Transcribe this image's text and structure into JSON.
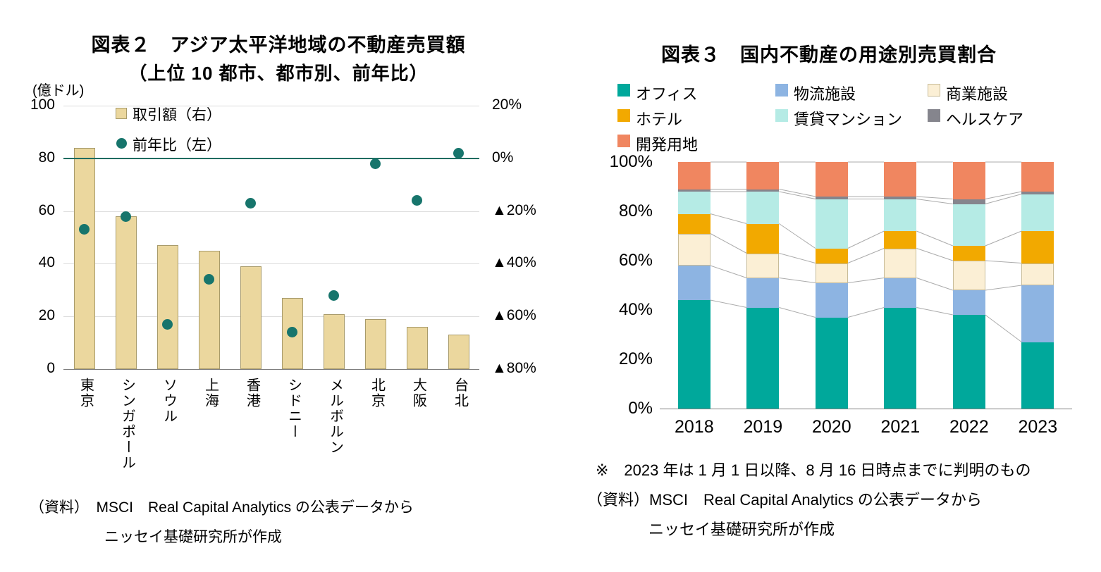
{
  "chart_data": [
    {
      "type": "bar+scatter",
      "title": "図表２　アジア太平洋地域の不動産売買額",
      "subtitle": "（上位 10 都市、都市別、前年比）",
      "categories": [
        "東京",
        "シンガポール",
        "ソウル",
        "上海",
        "香港",
        "シドニー",
        "メルボルン",
        "北京",
        "大阪",
        "台北"
      ],
      "series": [
        {
          "name": "取引額（右）",
          "type": "bar",
          "unit": "億ドル",
          "color": "#EBD79E",
          "border": "#A89B6B",
          "values": [
            84,
            58,
            47,
            45,
            39,
            27,
            21,
            19,
            16,
            13
          ]
        },
        {
          "name": "前年比（左）",
          "type": "scatter",
          "unit": "%",
          "color": "#17756C",
          "values": [
            -27,
            -22,
            -63,
            -46,
            -17,
            -66,
            -52,
            -2,
            -16,
            2
          ]
        }
      ],
      "left_axis": {
        "label": "(億ドル)",
        "ticks": [
          "100",
          "80",
          "60",
          "40",
          "20",
          "0"
        ],
        "min": 0,
        "max": 100
      },
      "right_axis": {
        "ticks": [
          "20%",
          "0%",
          "▲20%",
          "▲40%",
          "▲60%",
          "▲80%"
        ],
        "min": -80,
        "max": 20
      },
      "zero_line_value": 0,
      "zero_line_color": "#1F6C60",
      "grid": true,
      "legend_position": "top-left-inside",
      "source": [
        "（資料）　MSCI　Real Capital Analytics の公表データから",
        "ニッセイ基礎研究所が作成"
      ]
    },
    {
      "type": "stacked-bar-100",
      "title": "図表３　国内不動産の用途別売買割合",
      "categories": [
        "2018",
        "2019",
        "2020",
        "2021",
        "2022",
        "2023"
      ],
      "series": [
        {
          "name": "オフィス",
          "color": "#00A89B",
          "values": [
            44,
            41,
            37,
            41,
            38,
            27
          ]
        },
        {
          "name": "物流施設",
          "color": "#8DB4E2",
          "values": [
            14,
            12,
            14,
            12,
            10,
            23
          ]
        },
        {
          "name": "商業施設",
          "color": "#FBEFD5",
          "border": "#C8BC98",
          "values": [
            13,
            10,
            8,
            12,
            12,
            9
          ]
        },
        {
          "name": "ホテル",
          "color": "#F2A900",
          "values": [
            8,
            12,
            6,
            7,
            6,
            13
          ]
        },
        {
          "name": "賃貸マンション",
          "color": "#B5EBE5",
          "values": [
            9,
            13,
            20,
            13,
            17,
            15
          ]
        },
        {
          "name": "ヘルスケア",
          "color": "#85858D",
          "values": [
            1,
            1,
            1,
            1,
            2,
            1
          ]
        },
        {
          "name": "開発用地",
          "color": "#F08660",
          "values": [
            11,
            11,
            14,
            14,
            15,
            12
          ]
        }
      ],
      "y_ticks": [
        "100%",
        "80%",
        "60%",
        "40%",
        "20%",
        "0%"
      ],
      "ylim": [
        0,
        100
      ],
      "grid": false,
      "legend_position": "top",
      "note": "※　2023 年は 1 月 1 日以降、8 月 16 日時点までに判明のもの",
      "source": [
        "（資料）MSCI　Real Capital Analytics の公表データから",
        "ニッセイ基礎研究所が作成"
      ]
    }
  ]
}
